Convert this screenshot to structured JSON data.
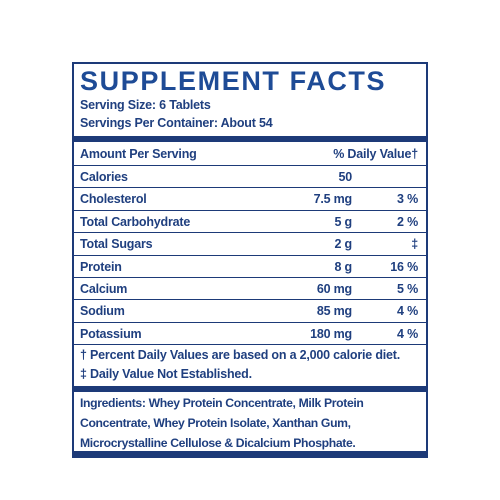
{
  "label": {
    "title": "SUPPLEMENT FACTS",
    "serving_size": "Serving Size: 6 Tablets",
    "servings_per_container": "Servings Per Container: About 54",
    "header": {
      "amount": "Amount Per Serving",
      "dv": "% Daily Value†"
    },
    "rows": [
      {
        "name": "Calories",
        "amount": "50"
      },
      {
        "name": "Cholesterol",
        "amount": "7.5 mg",
        "dv": "3 %"
      },
      {
        "name": "Total Carbohydrate",
        "amount": "5 g",
        "dv": "2 %"
      },
      {
        "name": "Total Sugars",
        "amount": "2 g",
        "dv": "‡"
      },
      {
        "name": "Protein",
        "amount": "8 g",
        "dv": "16 %"
      },
      {
        "name": "Calcium",
        "amount": "60 mg",
        "dv": "5 %"
      },
      {
        "name": "Sodium",
        "amount": "85 mg",
        "dv": "4 %"
      },
      {
        "name": "Potassium",
        "amount": "180 mg",
        "dv": "4 %"
      }
    ],
    "footnotes": [
      "† Percent Daily Values are based on a 2,000 calorie diet.",
      "‡ Daily Value Not Established."
    ],
    "ingredients_label": "Ingredients:",
    "ingredients": "Whey Protein Concentrate, Milk Protein Concentrate, Whey Protein Isolate, Xanthan Gum, Microcrystalline Cellulose & Dicalcium Phosphate."
  }
}
